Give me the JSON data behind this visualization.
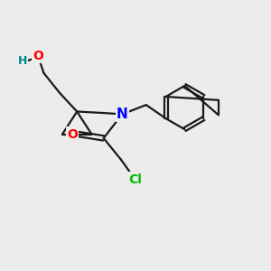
{
  "bg_color": "#ececec",
  "bond_color": "#1a1a1a",
  "bond_width": 1.6,
  "atom_colors": {
    "O": "#ff0000",
    "N": "#0000ff",
    "Cl": "#00bb00",
    "H": "#008888",
    "C": "#1a1a1a"
  },
  "figsize": [
    3.0,
    3.0
  ],
  "dpi": 100
}
